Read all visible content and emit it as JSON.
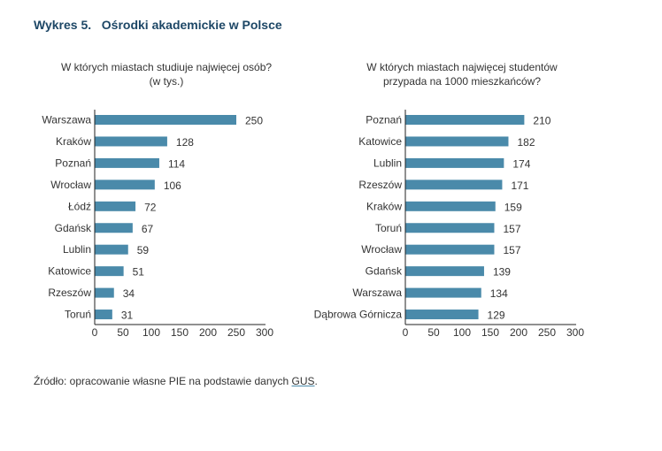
{
  "title": "Wykres 5.   Ośrodki akademickie w Polsce",
  "chart_data": [
    {
      "type": "bar",
      "orientation": "horizontal",
      "title": "W których miastach studiuje najwięcej osób? (w tys.)",
      "title_lines": [
        "W których miastach studiuje najwięcej osób?",
        "(w tys.)"
      ],
      "categories": [
        "Warszawa",
        "Kraków",
        "Poznań",
        "Wrocław",
        "Łódź",
        "Gdańsk",
        "Lublin",
        "Katowice",
        "Rzeszów",
        "Toruń"
      ],
      "values": [
        250,
        128,
        114,
        106,
        72,
        67,
        59,
        51,
        34,
        31
      ],
      "xlim": [
        0,
        300
      ],
      "xticks": [
        0,
        50,
        100,
        150,
        200,
        250,
        300
      ],
      "xlabel": "",
      "ylabel": "",
      "grid": false,
      "bar_color": "#4a8aaa"
    },
    {
      "type": "bar",
      "orientation": "horizontal",
      "title": "W których miastach najwięcej studentów przypada na 1000 mieszkańców?",
      "title_lines": [
        "W których miastach najwięcej studentów",
        "przypada na 1000 mieszkańców?"
      ],
      "categories": [
        "Poznań",
        "Katowice",
        "Lublin",
        "Rzeszów",
        "Kraków",
        "Toruń",
        "Wrocław",
        "Gdańsk",
        "Warszawa",
        "Dąbrowa Górnicza"
      ],
      "values": [
        210,
        182,
        174,
        171,
        159,
        157,
        157,
        139,
        134,
        129
      ],
      "xlim": [
        0,
        300
      ],
      "xticks": [
        0,
        50,
        100,
        150,
        200,
        250,
        300
      ],
      "xlabel": "",
      "ylabel": "",
      "grid": false,
      "bar_color": "#4a8aaa"
    }
  ],
  "source": {
    "prefix": "Źródło: opracowanie własne PIE na podstawie danych ",
    "link": "GUS",
    "suffix": "."
  }
}
